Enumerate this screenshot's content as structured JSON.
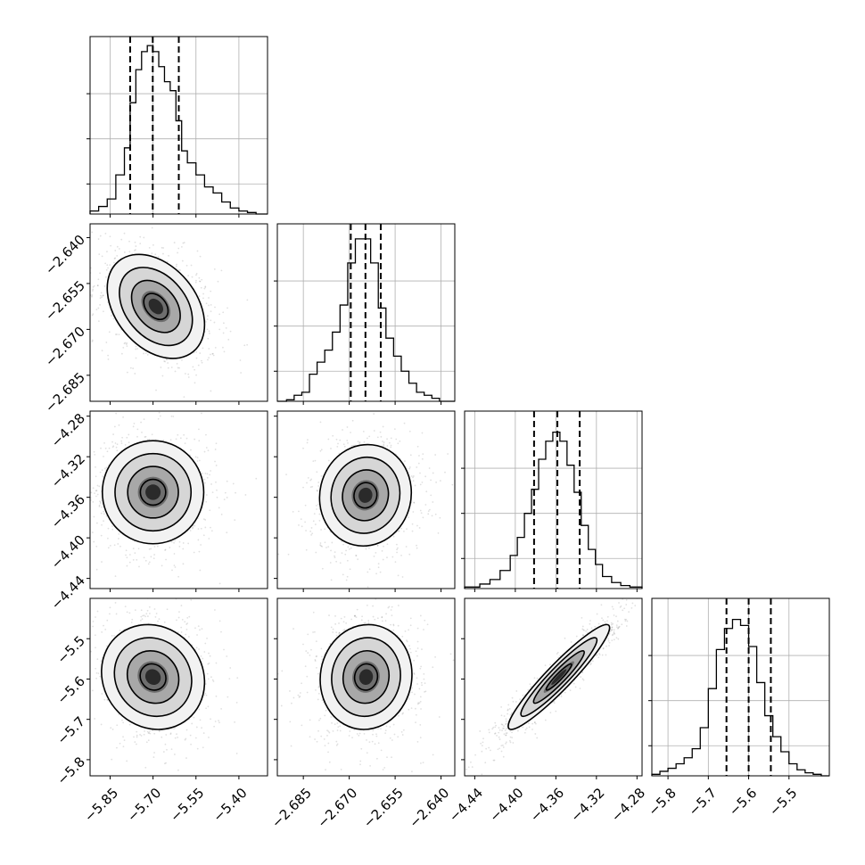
{
  "chart_data": {
    "type": "corner",
    "grid": true,
    "parameters": [
      {
        "range": [
          -5.92,
          -5.3
        ],
        "ticks": [
          -5.85,
          -5.7,
          -5.55,
          -5.4
        ],
        "tick_labels": [
          "−5.85",
          "−5.70",
          "−5.55",
          "−5.40"
        ],
        "quantiles": [
          -5.78,
          -5.701,
          -5.61
        ],
        "hist_y_ticks": [
          0.2,
          0.5,
          0.8
        ],
        "hist_y_max": 1.18,
        "hist_edges": [
          -5.92,
          -5.89,
          -5.86,
          -5.83,
          -5.8,
          -5.78,
          -5.76,
          -5.74,
          -5.72,
          -5.7,
          -5.68,
          -5.66,
          -5.64,
          -5.62,
          -5.6,
          -5.58,
          -5.55,
          -5.52,
          -5.49,
          -5.46,
          -5.43,
          -5.4,
          -5.37,
          -5.34,
          -5.3
        ],
        "hist_counts": [
          0.02,
          0.05,
          0.1,
          0.26,
          0.44,
          0.74,
          0.96,
          1.08,
          1.12,
          1.08,
          0.98,
          0.88,
          0.82,
          0.62,
          0.42,
          0.34,
          0.26,
          0.18,
          0.14,
          0.08,
          0.04,
          0.02,
          0.01,
          0.0
        ]
      },
      {
        "range": [
          -2.6935,
          -2.6355
        ],
        "ticks": [
          -2.685,
          -2.67,
          -2.655,
          -2.64
        ],
        "tick_labels": [
          "−2.685",
          "−2.670",
          "−2.655",
          "−2.640"
        ],
        "quantiles": [
          -2.6695,
          -2.6647,
          -2.6597
        ],
        "hist_y_ticks": [
          0.2,
          0.5,
          0.8
        ],
        "hist_y_max": 1.18,
        "hist_edges": [
          -2.6935,
          -2.6905,
          -2.688,
          -2.6855,
          -2.683,
          -2.6805,
          -2.678,
          -2.6755,
          -2.673,
          -2.6705,
          -2.668,
          -2.6655,
          -2.663,
          -2.6605,
          -2.658,
          -2.6555,
          -2.653,
          -2.6505,
          -2.648,
          -2.6455,
          -2.643,
          -2.6405,
          -2.638,
          -2.6355
        ],
        "hist_counts": [
          0.0,
          0.01,
          0.04,
          0.06,
          0.18,
          0.26,
          0.34,
          0.46,
          0.64,
          0.92,
          1.08,
          1.08,
          0.92,
          0.62,
          0.42,
          0.3,
          0.2,
          0.12,
          0.06,
          0.04,
          0.02,
          0.0,
          0.0
        ]
      },
      {
        "range": [
          -4.45,
          -4.275
        ],
        "ticks": [
          -4.44,
          -4.4,
          -4.36,
          -4.32,
          -4.28
        ],
        "tick_labels": [
          "−4.44",
          "−4.40",
          "−4.36",
          "−4.32",
          "−4.28"
        ],
        "quantiles": [
          -4.3815,
          -4.3585,
          -4.3365
        ],
        "hist_y_ticks": [
          0.2,
          0.5,
          0.8
        ],
        "hist_y_max": 1.18,
        "hist_edges": [
          -4.45,
          -4.435,
          -4.425,
          -4.415,
          -4.405,
          -4.398,
          -4.391,
          -4.384,
          -4.377,
          -4.37,
          -4.363,
          -4.356,
          -4.349,
          -4.342,
          -4.335,
          -4.328,
          -4.321,
          -4.314,
          -4.305,
          -4.296,
          -4.287,
          -4.275
        ],
        "hist_counts": [
          0.01,
          0.03,
          0.06,
          0.12,
          0.22,
          0.34,
          0.5,
          0.66,
          0.86,
          0.98,
          1.04,
          0.98,
          0.82,
          0.64,
          0.42,
          0.26,
          0.16,
          0.08,
          0.04,
          0.02,
          0.01
        ]
      },
      {
        "range": [
          -5.84,
          -5.4
        ],
        "ticks": [
          -5.8,
          -5.7,
          -5.6,
          -5.5
        ],
        "tick_labels": [
          "−5.8",
          "−5.7",
          "−5.6",
          "−5.5"
        ],
        "quantiles": [
          -5.655,
          -5.6,
          -5.545
        ],
        "hist_y_ticks": [
          0.2,
          0.5,
          0.8
        ],
        "hist_y_max": 1.18,
        "hist_edges": [
          -5.84,
          -5.82,
          -5.8,
          -5.78,
          -5.76,
          -5.74,
          -5.72,
          -5.7,
          -5.68,
          -5.66,
          -5.64,
          -5.62,
          -5.6,
          -5.58,
          -5.56,
          -5.54,
          -5.52,
          -5.5,
          -5.48,
          -5.46,
          -5.44,
          -5.42,
          -5.4
        ],
        "hist_counts": [
          0.01,
          0.03,
          0.05,
          0.08,
          0.12,
          0.18,
          0.32,
          0.58,
          0.84,
          0.98,
          1.04,
          1.0,
          0.86,
          0.62,
          0.4,
          0.26,
          0.16,
          0.08,
          0.04,
          0.02,
          0.01,
          0.0
        ]
      }
    ],
    "pairs": [
      {
        "x": 0,
        "y": 1,
        "center": [
          -5.69,
          -2.6625
        ],
        "sigma": [
          0.085,
          0.0085
        ],
        "corr": -0.35
      },
      {
        "x": 0,
        "y": 2,
        "center": [
          -5.7,
          -4.355
        ],
        "sigma": [
          0.09,
          0.025
        ],
        "corr": 0.0
      },
      {
        "x": 1,
        "y": 2,
        "center": [
          -2.6647,
          -4.358
        ],
        "sigma": [
          0.0075,
          0.025
        ],
        "corr": 0.05
      },
      {
        "x": 0,
        "y": 3,
        "center": [
          -5.7,
          -5.595
        ],
        "sigma": [
          0.09,
          0.065
        ],
        "corr": -0.1
      },
      {
        "x": 1,
        "y": 3,
        "center": [
          -2.6645,
          -5.595
        ],
        "sigma": [
          0.0075,
          0.065
        ],
        "corr": 0.05
      },
      {
        "x": 2,
        "y": 3,
        "center": [
          -4.357,
          -5.595
        ],
        "sigma": [
          0.025,
          0.065
        ],
        "corr": 0.94
      }
    ],
    "contour_levels_sigma": [
      0.5,
      1.0,
      1.5,
      2.0
    ]
  }
}
